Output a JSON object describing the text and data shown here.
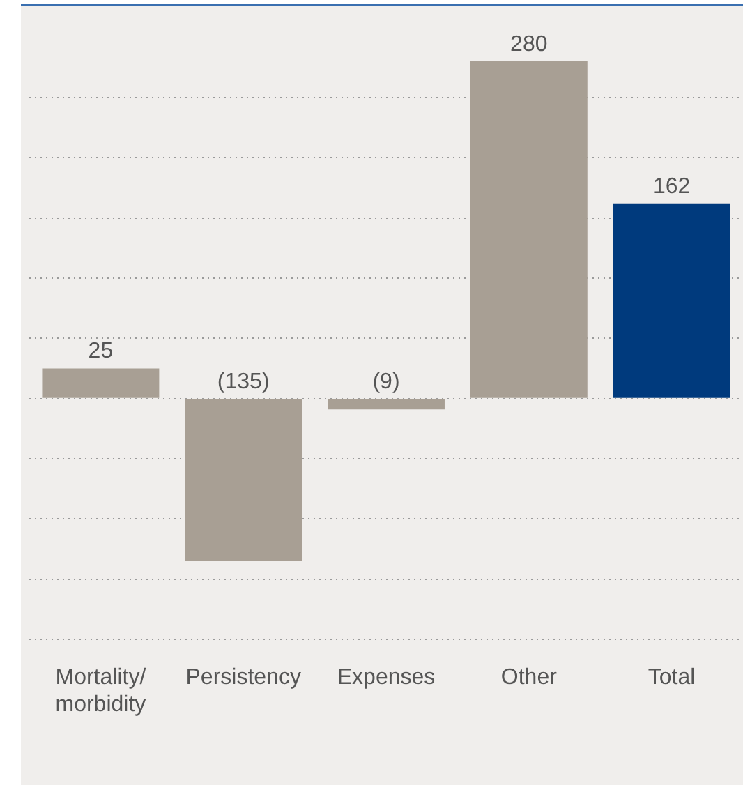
{
  "chart_data": {
    "type": "bar",
    "categories": [
      "Mortality/ morbidity",
      "Persistency",
      "Expenses",
      "Other",
      "Total"
    ],
    "values": [
      25,
      -135,
      -9,
      280,
      162
    ],
    "colors": [
      "#a89f94",
      "#a89f94",
      "#a89f94",
      "#a89f94",
      "#003a7d"
    ],
    "value_labels": [
      "25",
      "(135)",
      "(9)",
      "280",
      "162"
    ],
    "yticks": [
      {
        "value": -200,
        "label": null
      },
      {
        "value": -150,
        "label": null
      },
      {
        "value": -100,
        "label": null
      },
      {
        "value": -50,
        "label": null
      },
      {
        "value": 0,
        "label": null
      },
      {
        "value": 50,
        "label": null
      },
      {
        "value": 100,
        "label": null
      },
      {
        "value": 150,
        "label": null
      },
      {
        "value": 200,
        "label": null
      },
      {
        "value": 250,
        "label": null
      }
    ],
    "grid": "y",
    "tick_labels": "x",
    "legend": false
  }
}
